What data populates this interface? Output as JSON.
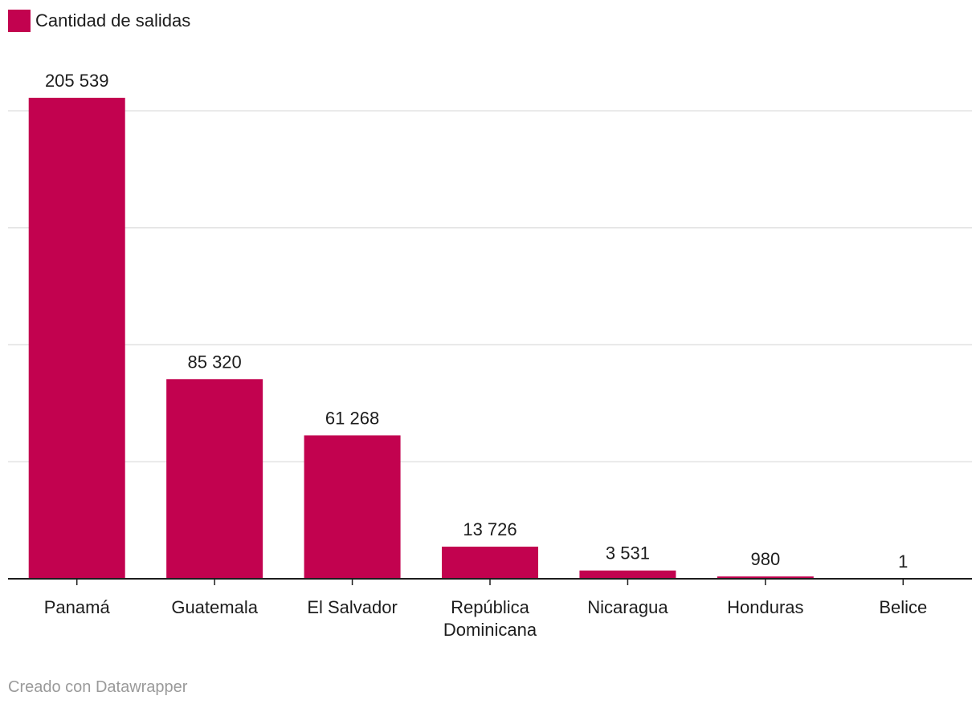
{
  "colors": {
    "bar": "#c2024f",
    "grid": "#e3e3e3",
    "axis": "#1d1d1d",
    "footer": "#9a9a9a"
  },
  "legend": {
    "label": "Cantidad de salidas"
  },
  "footer": {
    "text": "Creado con Datawrapper"
  },
  "chart_data": {
    "type": "bar",
    "categories": [
      [
        "Panamá"
      ],
      [
        "Guatemala"
      ],
      [
        "El Salvador"
      ],
      [
        "República",
        "Dominicana"
      ],
      [
        "Nicaragua"
      ],
      [
        "Honduras"
      ],
      [
        "Belice"
      ]
    ],
    "series": [
      {
        "name": "Cantidad de salidas",
        "values": [
          205539,
          85320,
          61268,
          13726,
          3531,
          980,
          1
        ]
      }
    ],
    "value_labels": [
      "205 539",
      "85 320",
      "61 268",
      "13 726",
      "3 531",
      "980",
      "1"
    ],
    "ylim": [
      0,
      220000
    ],
    "gridlines": [
      50000,
      100000,
      150000,
      200000
    ],
    "grid": true,
    "legend_position": "top-left"
  }
}
